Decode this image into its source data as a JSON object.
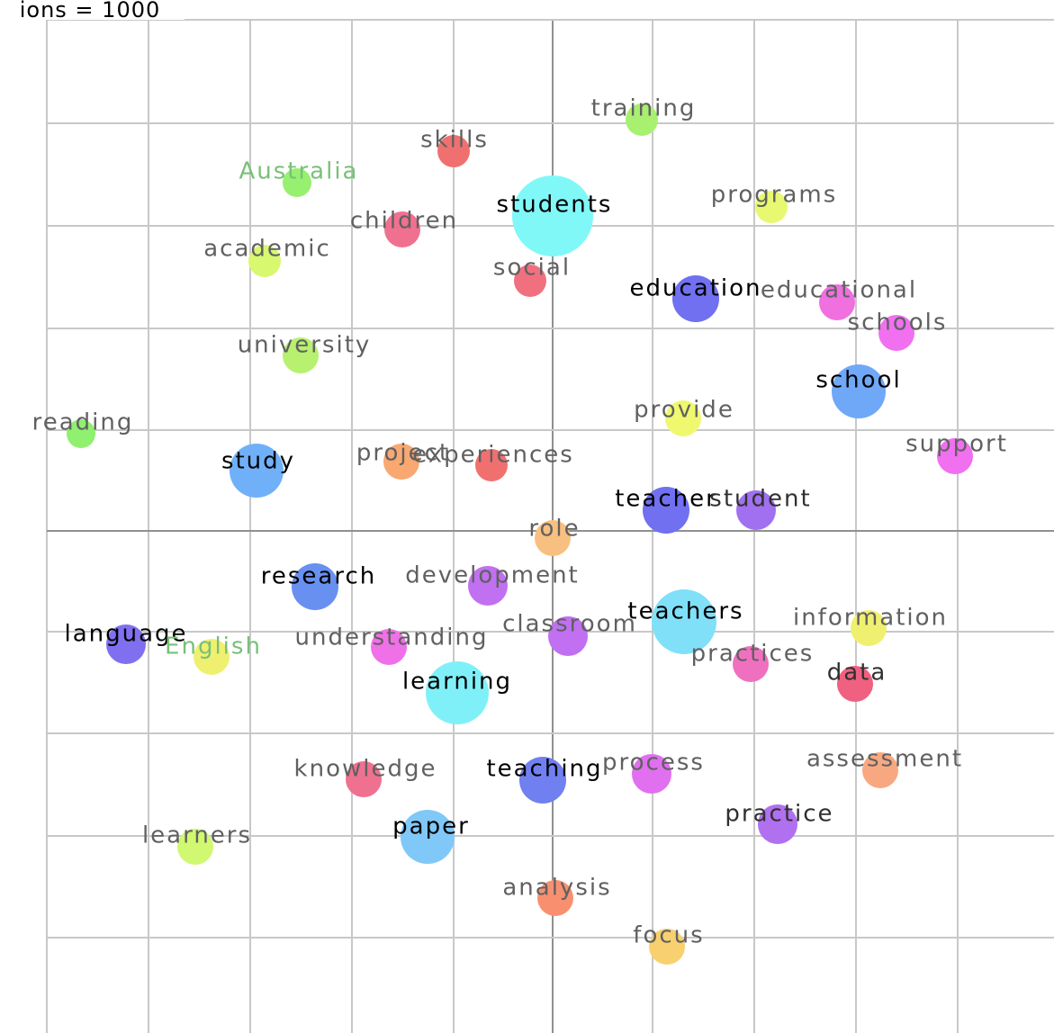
{
  "header": {
    "text": "ions = 1000"
  },
  "nodes": [
    {
      "label": "training"
    },
    {
      "label": "skills"
    },
    {
      "label": "Australia"
    },
    {
      "label": "students"
    },
    {
      "label": "programs"
    },
    {
      "label": "children"
    },
    {
      "label": "academic"
    },
    {
      "label": "social"
    },
    {
      "label": "education"
    },
    {
      "label": "educational"
    },
    {
      "label": "schools"
    },
    {
      "label": "university"
    },
    {
      "label": "school"
    },
    {
      "label": "provide"
    },
    {
      "label": "reading"
    },
    {
      "label": "support"
    },
    {
      "label": "study"
    },
    {
      "label": "project"
    },
    {
      "label": "experiences"
    },
    {
      "label": "teacher"
    },
    {
      "label": "student"
    },
    {
      "label": "role"
    },
    {
      "label": "research"
    },
    {
      "label": "development"
    },
    {
      "label": "teachers"
    },
    {
      "label": "information"
    },
    {
      "label": "language"
    },
    {
      "label": "English"
    },
    {
      "label": "understanding"
    },
    {
      "label": "classroom"
    },
    {
      "label": "practices"
    },
    {
      "label": "data"
    },
    {
      "label": "learning"
    },
    {
      "label": "knowledge"
    },
    {
      "label": "teaching"
    },
    {
      "label": "process"
    },
    {
      "label": "assessment"
    },
    {
      "label": "practice"
    },
    {
      "label": "learners"
    },
    {
      "label": "paper"
    },
    {
      "label": "analysis"
    },
    {
      "label": "focus"
    }
  ]
}
